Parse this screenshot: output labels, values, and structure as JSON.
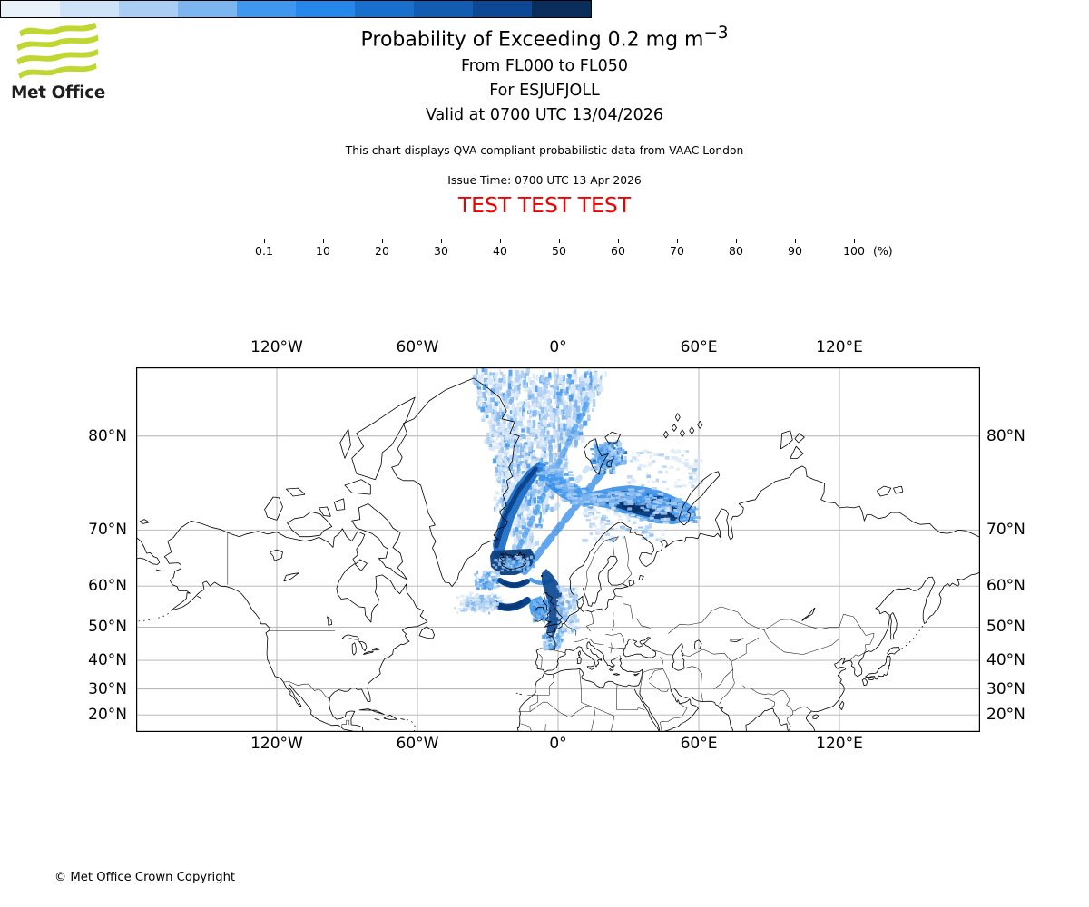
{
  "logo": {
    "title": "Met Office",
    "green": "#bfd730"
  },
  "header": {
    "title_main": "Probability of Exceeding 0.2 mg m",
    "title_exp": "−3",
    "line2": "From FL000 to FL050",
    "line3": "For ESJUFJOLL",
    "line4": "Valid at 0700 UTC 13/04/2026",
    "note": "This chart displays QVA compliant probabilistic data from VAAC London",
    "issue_time": "Issue Time: 0700 UTC 13 Apr 2026",
    "test_banner": "TEST TEST TEST",
    "test_color": "#f00000"
  },
  "colorbar": {
    "tick_labels": [
      "0.1",
      "10",
      "20",
      "30",
      "40",
      "50",
      "60",
      "70",
      "80",
      "90",
      "100"
    ],
    "unit_label": "(%)",
    "segment_colors": [
      "#e9f2fb",
      "#cfe3f8",
      "#a9cdf3",
      "#7cb5ef",
      "#3f98ed",
      "#2487e9",
      "#196fcc",
      "#125cb1",
      "#0c4893",
      "#0a2e5c"
    ]
  },
  "map": {
    "lon_labels": [
      "120°W",
      "60°W",
      "0°",
      "60°E",
      "120°E"
    ],
    "lat_labels": [
      "80°N",
      "70°N",
      "60°N",
      "50°N",
      "40°N",
      "30°N",
      "20°N"
    ]
  },
  "footer": {
    "copyright": "© Met Office Crown Copyright"
  },
  "chart_data": {
    "type": "map",
    "projection": "mercator",
    "extent": {
      "lon": [
        -180,
        180
      ],
      "lat": [
        13,
        84
      ]
    },
    "gridline_lons": [
      -120,
      -60,
      0,
      60,
      120
    ],
    "gridline_lats": [
      80,
      70,
      60,
      50,
      40,
      30,
      20
    ],
    "legend_percent_levels": [
      0.1,
      10,
      20,
      30,
      40,
      50,
      60,
      70,
      80,
      90,
      100
    ],
    "plume_summary": "Volcanic ash exceedance-probability plume from Esjufjoll (Iceland): dense maximum (>80%) over the Barents Sea ending at Novaya Zemlya, dense streaks over western Iceland, along the east Greenland coast, southwest of Iceland and down the North Sea along the Norwegian coast to Scotland, with a broad speckled low-probability fan spreading north past Svalbard to the top of the map."
  }
}
